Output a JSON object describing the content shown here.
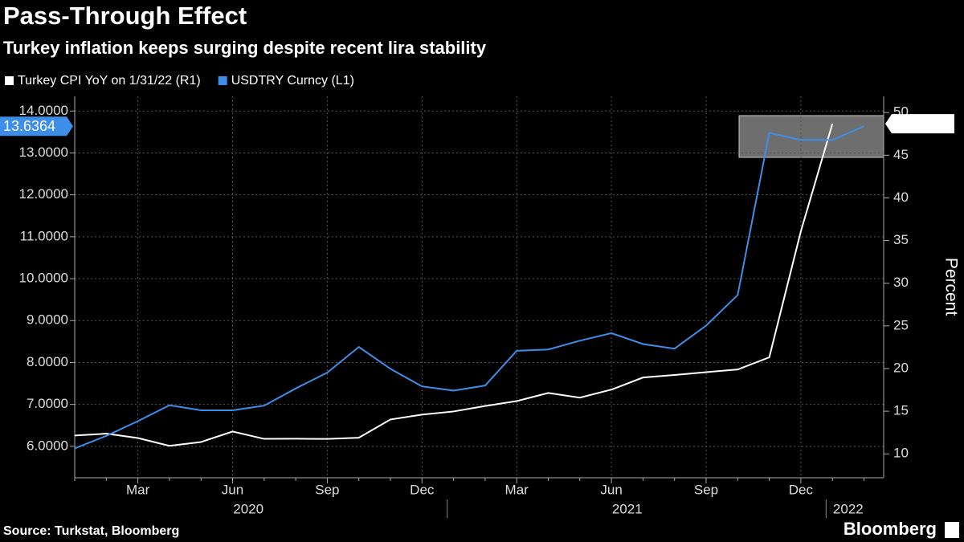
{
  "chart_data": {
    "type": "line",
    "title": "Pass-Through Effect",
    "subtitle": "Turkey inflation keeps surging despite recent lira stability",
    "categories": [
      null,
      null,
      "Mar",
      null,
      null,
      "Jun",
      null,
      null,
      "Sep",
      null,
      null,
      "Dec",
      null,
      null,
      "Mar",
      null,
      null,
      "Jun",
      null,
      null,
      "Sep",
      null,
      null,
      "Dec",
      null,
      null
    ],
    "years": [
      "2020",
      "2021",
      "2022"
    ],
    "series": [
      {
        "name": "Turkey CPI YoY on 1/31/22 (R1)",
        "color": "#ffffff",
        "axis": "y2",
        "values": [
          12.15,
          12.37,
          11.86,
          10.94,
          11.39,
          12.62,
          11.76,
          11.77,
          11.75,
          11.89,
          14.03,
          14.6,
          14.97,
          15.61,
          16.19,
          17.14,
          16.59,
          17.53,
          18.95,
          19.25,
          19.58,
          19.89,
          21.31,
          36.08,
          48.69,
          null
        ]
      },
      {
        "name": "USDTRY Curncy (L1)",
        "color": "#3d8ee8",
        "values": [
          5.95,
          6.25,
          6.6,
          6.98,
          6.86,
          6.86,
          6.97,
          7.38,
          7.76,
          8.37,
          7.85,
          7.43,
          7.33,
          7.45,
          8.28,
          8.31,
          8.52,
          8.7,
          8.44,
          8.33,
          8.88,
          9.61,
          13.48,
          13.31,
          13.31,
          13.6364
        ]
      }
    ],
    "ylim": [
      5.25,
      14.35
    ],
    "yticks": [
      {
        "value": 6,
        "label": "6.0000"
      },
      {
        "value": 7,
        "label": "7.0000"
      },
      {
        "value": 8,
        "label": "8.0000"
      },
      {
        "value": 9,
        "label": "9.0000"
      },
      {
        "value": 10,
        "label": "10.0000"
      },
      {
        "value": 11,
        "label": "11.0000"
      },
      {
        "value": 12,
        "label": "12.0000"
      },
      {
        "value": 13,
        "label": "13.0000"
      },
      {
        "value": 14,
        "label": "14.0000"
      }
    ],
    "y2lim": [
      7.2,
      51.9
    ],
    "y2ticks": [
      10,
      15,
      20,
      25,
      30,
      35,
      40,
      45,
      50
    ],
    "y2label": "Percent",
    "grid": true,
    "source": "Source: Turkstat, Bloomberg",
    "brand": "Bloomberg"
  }
}
